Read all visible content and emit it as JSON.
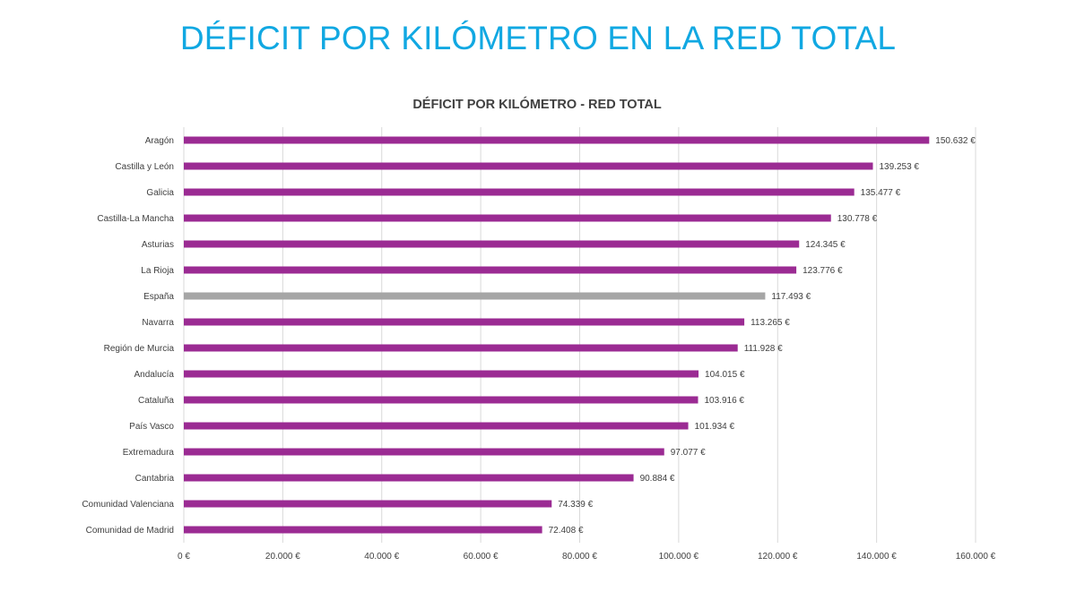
{
  "slide": {
    "title": "DÉFICIT POR KILÓMETRO EN LA RED TOTAL",
    "title_color": "#11a8e2"
  },
  "chart_data": {
    "type": "bar",
    "orientation": "horizontal",
    "title": "DÉFICIT POR KILÓMETRO - RED TOTAL",
    "xlabel": "",
    "ylabel": "",
    "xlim": [
      0,
      160000
    ],
    "grid": true,
    "legend": "none",
    "x_ticks": [
      "0 €",
      "20.000 €",
      "40.000 €",
      "60.000 €",
      "80.000 €",
      "100.000 €",
      "120.000 €",
      "140.000 €",
      "160.000 €"
    ],
    "x_tick_values": [
      0,
      20000,
      40000,
      60000,
      80000,
      100000,
      120000,
      140000,
      160000
    ],
    "colors": {
      "default": "#9b2b93",
      "highlight": "#a6a6a6"
    },
    "categories": [
      "Aragón",
      "Castilla y León",
      "Galicia",
      "Castilla-La Mancha",
      "Asturias",
      "La Rioja",
      "España",
      "Navarra",
      "Región de Murcia",
      "Andalucía",
      "Cataluña",
      "País Vasco",
      "Extremadura",
      "Cantabria",
      "Comunidad Valenciana",
      "Comunidad de Madrid"
    ],
    "values": [
      150632,
      139253,
      135477,
      130778,
      124345,
      123776,
      117493,
      113265,
      111928,
      104015,
      103916,
      101934,
      97077,
      90884,
      74339,
      72408
    ],
    "value_labels": [
      "150.632 €",
      "139.253 €",
      "135.477 €",
      "130.778 €",
      "124.345 €",
      "123.776 €",
      "117.493 €",
      "113.265 €",
      "111.928 €",
      "104.015 €",
      "103.916 €",
      "101.934 €",
      "97.077 €",
      "90.884 €",
      "74.339 €",
      "72.408 €"
    ],
    "highlight": [
      "España"
    ]
  }
}
